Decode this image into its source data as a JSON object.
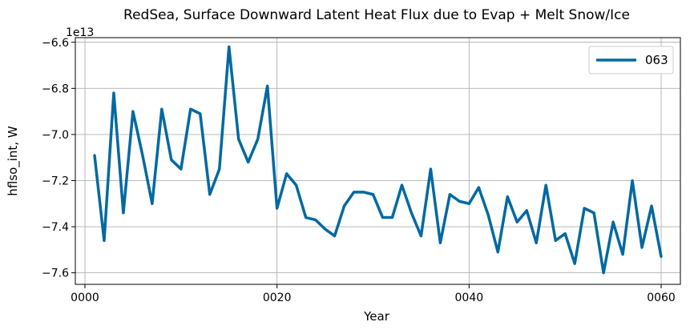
{
  "chart_data": {
    "type": "line",
    "title": "RedSea, Surface Downward Latent Heat Flux due to Evap + Melt Snow/Ice",
    "xlabel": "Year",
    "ylabel": "hflso_int, W",
    "offset_text": "1e13",
    "xlim": [
      -1,
      62
    ],
    "ylim": [
      -7.65,
      -6.58
    ],
    "grid": true,
    "legend_position": "top-right",
    "x_ticks": [
      {
        "value": 0,
        "label": "0000"
      },
      {
        "value": 20,
        "label": "0020"
      },
      {
        "value": 40,
        "label": "0040"
      },
      {
        "value": 60,
        "label": "0060"
      }
    ],
    "y_ticks": [
      {
        "value": -7.6,
        "label": "−7.6"
      },
      {
        "value": -7.4,
        "label": "−7.4"
      },
      {
        "value": -7.2,
        "label": "−7.2"
      },
      {
        "value": -7.0,
        "label": "−7.0"
      },
      {
        "value": -6.8,
        "label": "−6.8"
      },
      {
        "value": -6.6,
        "label": "−6.6"
      }
    ],
    "series": [
      {
        "name": "063",
        "color": "#0069a1",
        "x": [
          1,
          2,
          3,
          4,
          5,
          6,
          7,
          8,
          9,
          10,
          11,
          12,
          13,
          14,
          15,
          16,
          17,
          18,
          19,
          20,
          21,
          22,
          23,
          24,
          25,
          26,
          27,
          28,
          29,
          30,
          31,
          32,
          33,
          34,
          35,
          36,
          37,
          38,
          39,
          40,
          41,
          42,
          43,
          44,
          45,
          46,
          47,
          48,
          49,
          50,
          51,
          52,
          53,
          54,
          55,
          56,
          57,
          58,
          59,
          60
        ],
        "values": [
          -7.09,
          -7.46,
          -6.82,
          -7.34,
          -6.9,
          -7.09,
          -7.3,
          -6.89,
          -7.11,
          -7.15,
          -6.89,
          -6.91,
          -7.26,
          -7.15,
          -6.62,
          -7.02,
          -7.12,
          -7.02,
          -6.79,
          -7.32,
          -7.17,
          -7.22,
          -7.36,
          -7.37,
          -7.41,
          -7.44,
          -7.31,
          -7.25,
          -7.25,
          -7.26,
          -7.36,
          -7.36,
          -7.22,
          -7.34,
          -7.44,
          -7.15,
          -7.47,
          -7.26,
          -7.29,
          -7.3,
          -7.23,
          -7.35,
          -7.51,
          -7.27,
          -7.38,
          -7.33,
          -7.47,
          -7.22,
          -7.46,
          -7.43,
          -7.56,
          -7.32,
          -7.34,
          -7.6,
          -7.38,
          -7.52,
          -7.2,
          -7.49,
          -7.31,
          -7.53
        ]
      }
    ]
  }
}
